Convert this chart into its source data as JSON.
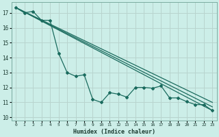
{
  "title": "",
  "xlabel": "Humidex (Indice chaleur)",
  "ylabel": "",
  "bg_color": "#cceee8",
  "grid_color": "#b8d4ce",
  "line_color": "#1a6b5e",
  "xlim": [
    -0.5,
    23.5
  ],
  "ylim": [
    9.8,
    17.7
  ],
  "xticks": [
    0,
    1,
    2,
    3,
    4,
    5,
    6,
    7,
    8,
    9,
    10,
    11,
    12,
    13,
    14,
    15,
    16,
    17,
    18,
    19,
    20,
    21,
    22,
    23
  ],
  "yticks": [
    10,
    11,
    12,
    13,
    14,
    15,
    16,
    17
  ],
  "series1_x": [
    0,
    1,
    2,
    3,
    4,
    5,
    6,
    7,
    8,
    9,
    10,
    11,
    12,
    13,
    14,
    15,
    16,
    17,
    18,
    19,
    20,
    21,
    22,
    23
  ],
  "series1_y": [
    17.35,
    17.0,
    17.1,
    16.5,
    16.5,
    14.3,
    13.0,
    12.75,
    12.85,
    11.2,
    11.0,
    11.65,
    11.55,
    11.35,
    12.0,
    12.0,
    11.95,
    12.1,
    11.3,
    11.3,
    11.05,
    10.85,
    10.85,
    10.45
  ],
  "series2_x": [
    0,
    23
  ],
  "series2_y": [
    17.35,
    10.45
  ],
  "series3_x": [
    0,
    23
  ],
  "series3_y": [
    17.35,
    10.7
  ],
  "series4_x": [
    0,
    23
  ],
  "series4_y": [
    17.35,
    11.0
  ]
}
